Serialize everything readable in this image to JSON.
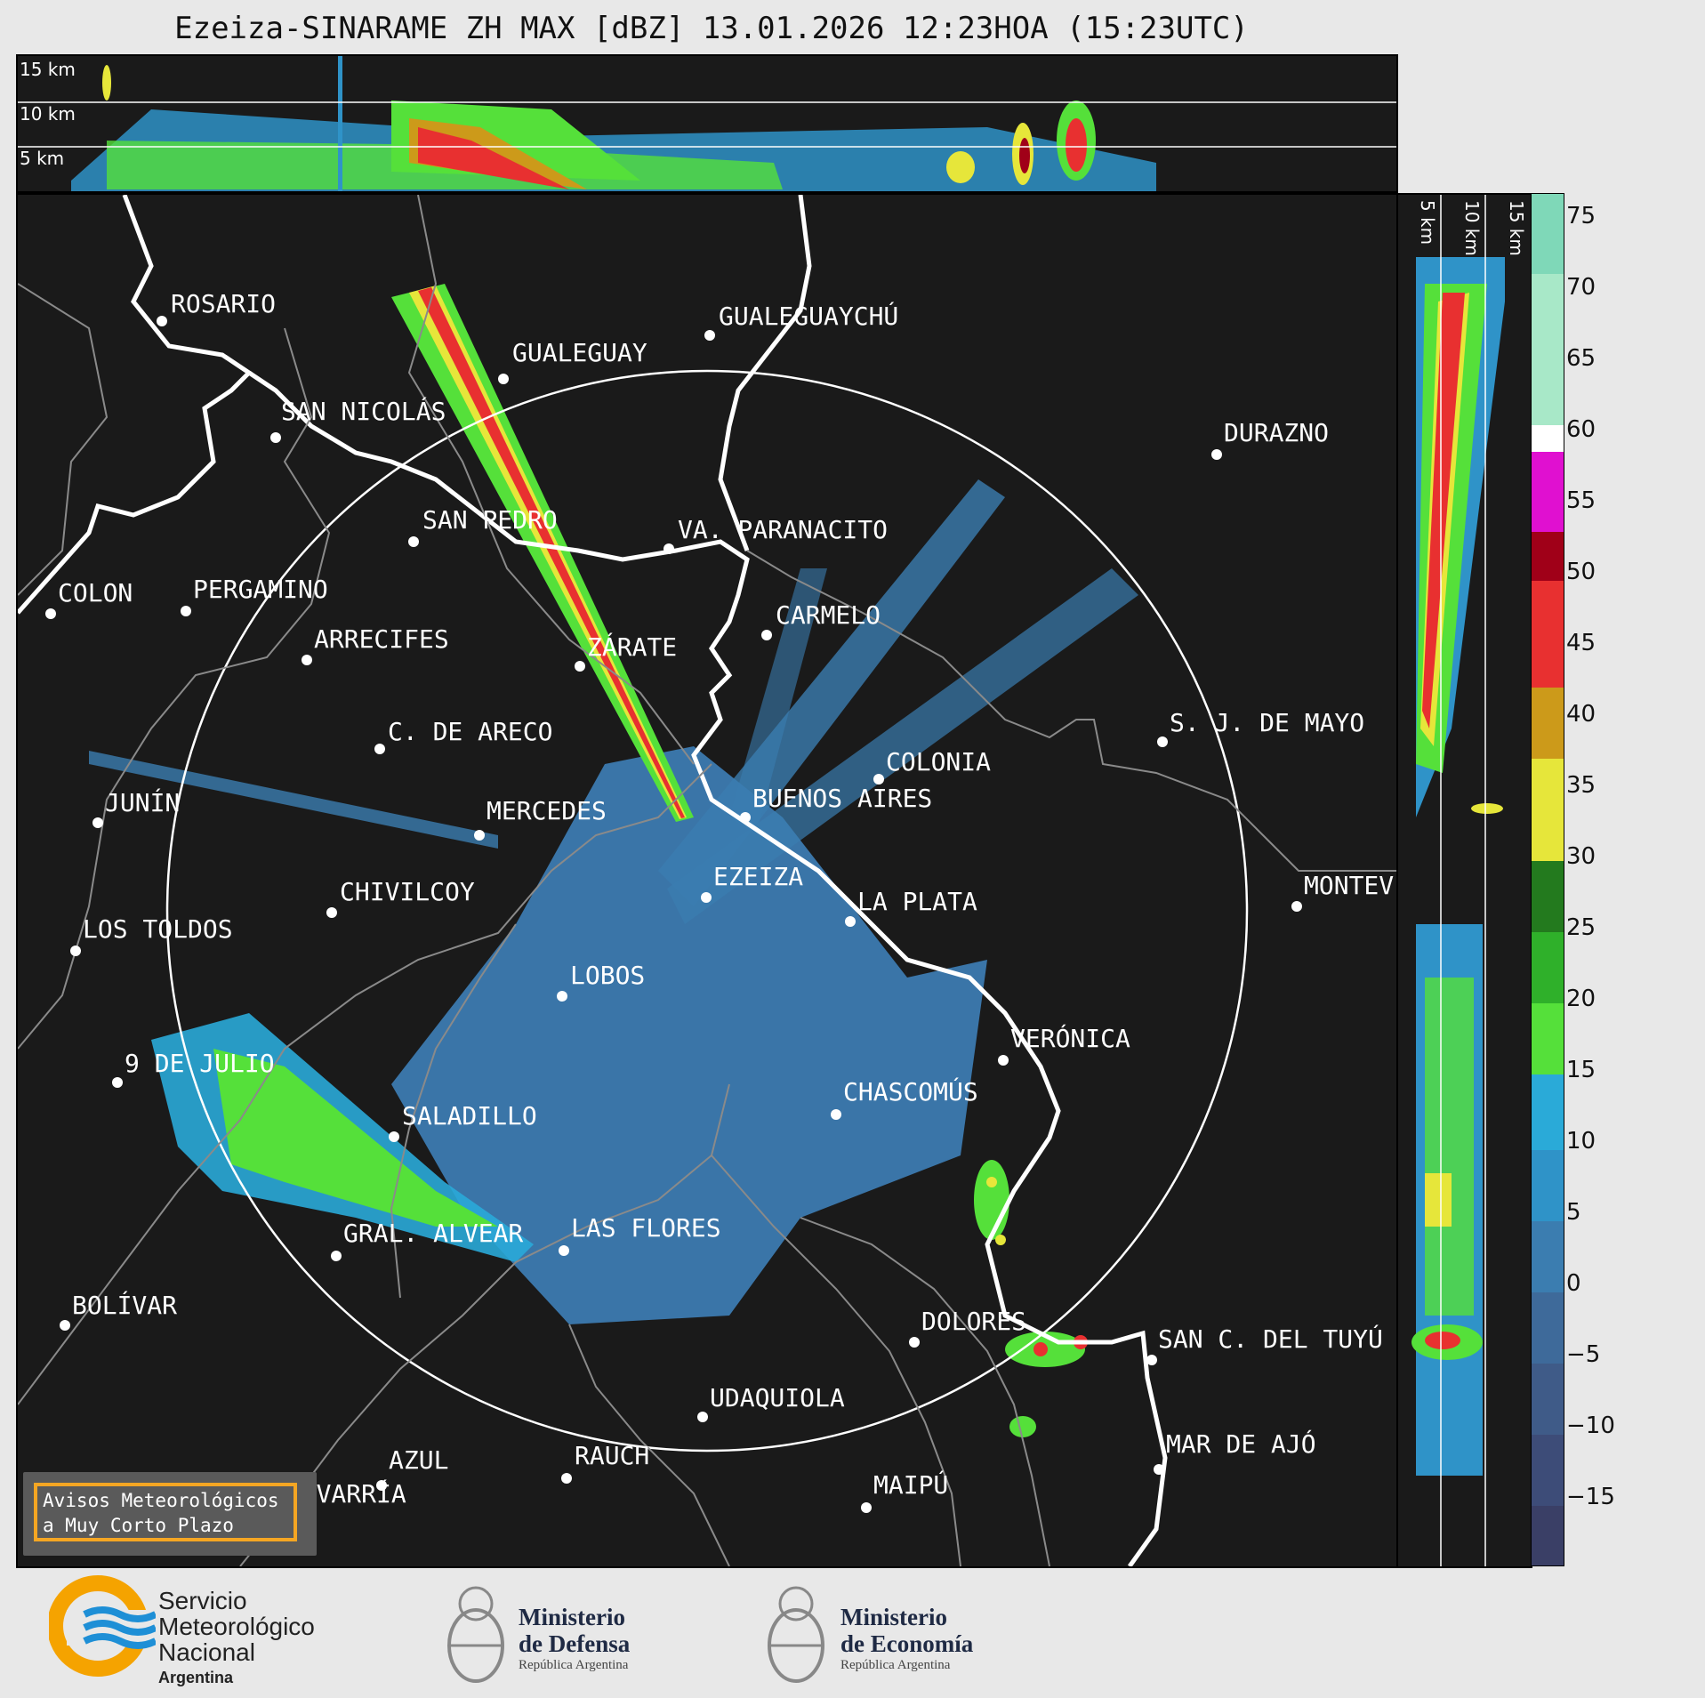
{
  "title": "Ezeiza-SINARAME ZH MAX [dBZ] 13.01.2026 12:23HOA (15:23UTC)",
  "top_panel": {
    "altitude_labels": [
      "15 km",
      "10 km",
      "5 km"
    ]
  },
  "side_panel": {
    "altitude_labels": [
      "5 km",
      "10 km",
      "15 km"
    ]
  },
  "cities": [
    {
      "name": "ROSARIO"
    },
    {
      "name": "GUALEGUAYCHÚ"
    },
    {
      "name": "GUALEGUAY"
    },
    {
      "name": "SAN NICOLÁS"
    },
    {
      "name": "DURAZNO"
    },
    {
      "name": "SAN PEDRO"
    },
    {
      "name": "VA. PARANACITO"
    },
    {
      "name": "COLON"
    },
    {
      "name": "PERGAMINO"
    },
    {
      "name": "CARMELO"
    },
    {
      "name": "ARRECIFES"
    },
    {
      "name": "ZÁRATE"
    },
    {
      "name": "S. J. DE MAYO"
    },
    {
      "name": "C. DE ARECO"
    },
    {
      "name": "COLONIA"
    },
    {
      "name": "JUNÍN"
    },
    {
      "name": "BUENOS AIRES"
    },
    {
      "name": "MERCEDES"
    },
    {
      "name": "EZEIZA"
    },
    {
      "name": "MONTEV"
    },
    {
      "name": "CHIVILCOY"
    },
    {
      "name": "LA PLATA"
    },
    {
      "name": "LOS TOLDOS"
    },
    {
      "name": "LOBOS"
    },
    {
      "name": "VERÓNICA"
    },
    {
      "name": "9 DE JULIO"
    },
    {
      "name": "CHASCOMÚS"
    },
    {
      "name": "SALADILLO"
    },
    {
      "name": "GRAL. ALVEAR"
    },
    {
      "name": "LAS FLORES"
    },
    {
      "name": "BOLÍVAR"
    },
    {
      "name": "DOLORES"
    },
    {
      "name": "SAN C. DEL TUYÚ"
    },
    {
      "name": "UDAQUIOLA"
    },
    {
      "name": "RAUCH"
    },
    {
      "name": "AZUL"
    },
    {
      "name": "MAR DE AJÓ"
    },
    {
      "name": "OLAVARRÍA"
    },
    {
      "name": "MAIPÚ"
    }
  ],
  "colorbar": {
    "ticks": [
      "75",
      "70",
      "65",
      "60",
      "55",
      "50",
      "45",
      "40",
      "35",
      "30",
      "25",
      "20",
      "15",
      "10",
      "5",
      "0",
      "−5",
      "−10",
      "−15"
    ],
    "colors": {
      "c_neg15": "#3a3f66",
      "c_neg10": "#3d4c78",
      "c_neg5": "#3f5b88",
      "c_0": "#3e6a9a",
      "c_5": "#3b7db0",
      "c_10": "#2f93c8",
      "c_15": "#2aaad8",
      "c_20": "#55e03a",
      "c_25": "#2fb02a",
      "c_30": "#237a1e",
      "c_35": "#e6e63a",
      "c_40": "#cc9a1a",
      "c_45": "#e83030",
      "c_50": "#a00018",
      "c_55": "#e010d0",
      "c_60": "#ffffff",
      "c_70": "#a8e8c8",
      "c_75": "#7fd8b8"
    }
  },
  "warning_box": {
    "line1": "Avisos Meteorológicos",
    "line2": "a Muy Corto Plazo"
  },
  "logos": {
    "smn": {
      "line1": "Servicio",
      "line2": "Meteorológico",
      "line3": "Nacional",
      "line4": "Argentina"
    },
    "defensa": {
      "line1": "Ministerio",
      "line2": "de Defensa",
      "line3": "República Argentina"
    },
    "economia": {
      "line1": "Ministerio",
      "line2": "de Economía",
      "line3": "República Argentina"
    }
  }
}
